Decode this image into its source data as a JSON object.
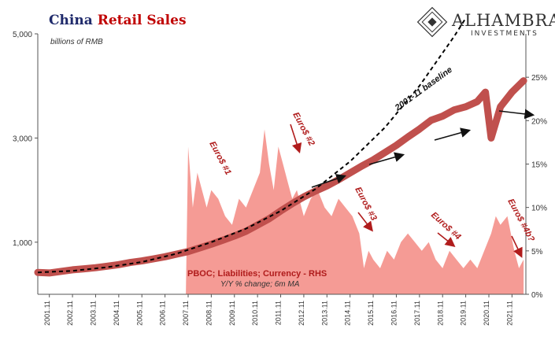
{
  "chart_data": {
    "type": "area",
    "title_part1": "China",
    "title_part2": "Retail Sales",
    "units_label": "billions of RMB",
    "logo": {
      "name": "ALHAMBRA",
      "sub": "INVESTMENTS"
    },
    "x_tick_labels": [
      "2001.11",
      "2002.11",
      "2003.11",
      "2004.11",
      "2005.11",
      "2006.11",
      "2007.11",
      "2008.11",
      "2009.11",
      "2010.11",
      "2011.11",
      "2012.11",
      "2013.11",
      "2014.11",
      "2015.11",
      "2016.11",
      "2017.11",
      "2018.11",
      "2019.11",
      "2020.11",
      "2021.11"
    ],
    "x_range": [
      2000.5,
      2021.6
    ],
    "y_left": {
      "range": [
        0,
        5000
      ],
      "ticks": [
        1000,
        3000,
        5000
      ],
      "tick_labels": [
        "1,000",
        "3,000",
        "5,000"
      ]
    },
    "y_right": {
      "range": [
        0,
        30
      ],
      "ticks": [
        0,
        5,
        10,
        15,
        20,
        25
      ],
      "tick_labels": [
        "0%",
        "5%",
        "10%",
        "15%",
        "20%",
        "25%"
      ]
    },
    "series": [
      {
        "key": "retail",
        "axis": "left",
        "color": "#c0504d",
        "points": [
          [
            2000.5,
            420
          ],
          [
            2001,
            410
          ],
          [
            2001.5,
            440
          ],
          [
            2002,
            470
          ],
          [
            2002.5,
            490
          ],
          [
            2003,
            510
          ],
          [
            2003.5,
            540
          ],
          [
            2004,
            570
          ],
          [
            2004.5,
            610
          ],
          [
            2005,
            640
          ],
          [
            2005.5,
            680
          ],
          [
            2006,
            720
          ],
          [
            2006.5,
            770
          ],
          [
            2007,
            820
          ],
          [
            2007.5,
            890
          ],
          [
            2008,
            960
          ],
          [
            2008.5,
            1040
          ],
          [
            2009,
            1120
          ],
          [
            2009.5,
            1210
          ],
          [
            2010,
            1330
          ],
          [
            2010.5,
            1450
          ],
          [
            2011,
            1600
          ],
          [
            2011.5,
            1740
          ],
          [
            2012,
            1870
          ],
          [
            2012.5,
            1980
          ],
          [
            2013,
            2080
          ],
          [
            2013.5,
            2200
          ],
          [
            2014,
            2330
          ],
          [
            2014.5,
            2460
          ],
          [
            2015,
            2580
          ],
          [
            2015.5,
            2720
          ],
          [
            2016,
            2860
          ],
          [
            2016.5,
            3020
          ],
          [
            2017,
            3170
          ],
          [
            2017.5,
            3340
          ],
          [
            2018,
            3420
          ],
          [
            2018.5,
            3540
          ],
          [
            2019,
            3600
          ],
          [
            2019.5,
            3700
          ],
          [
            2019.85,
            3880
          ],
          [
            2020.1,
            3000
          ],
          [
            2020.5,
            3600
          ],
          [
            2021,
            3880
          ],
          [
            2021.5,
            4100
          ]
        ]
      },
      {
        "key": "baseline",
        "name": "2001-11 baseline",
        "axis": "left",
        "color": "#000000",
        "points": [
          [
            2000.5,
            420
          ],
          [
            2002,
            450
          ],
          [
            2003.5,
            520
          ],
          [
            2005,
            620
          ],
          [
            2006.5,
            780
          ],
          [
            2008,
            1000
          ],
          [
            2009.5,
            1260
          ],
          [
            2011,
            1600
          ],
          [
            2012.5,
            2020
          ],
          [
            2014,
            2550
          ],
          [
            2015.5,
            3200
          ],
          [
            2017,
            4000
          ],
          [
            2018.5,
            4950
          ],
          [
            2019,
            5300
          ]
        ]
      },
      {
        "key": "pboc",
        "name": "PBOC; Liabilities; Currency - RHS",
        "note": "Y/Y % change; 6m MA",
        "axis": "right",
        "color": "#f4908a",
        "points": [
          [
            2006.9,
            0
          ],
          [
            2007,
            17
          ],
          [
            2007.2,
            10
          ],
          [
            2007.4,
            14
          ],
          [
            2007.6,
            12
          ],
          [
            2007.8,
            10
          ],
          [
            2008,
            12
          ],
          [
            2008.3,
            11
          ],
          [
            2008.6,
            9
          ],
          [
            2008.9,
            8
          ],
          [
            2009.2,
            11
          ],
          [
            2009.5,
            10
          ],
          [
            2009.8,
            12
          ],
          [
            2010.1,
            14
          ],
          [
            2010.3,
            19
          ],
          [
            2010.5,
            15
          ],
          [
            2010.7,
            12
          ],
          [
            2010.9,
            17
          ],
          [
            2011.1,
            15
          ],
          [
            2011.3,
            13
          ],
          [
            2011.5,
            11
          ],
          [
            2011.7,
            12
          ],
          [
            2012,
            9
          ],
          [
            2012.3,
            11
          ],
          [
            2012.6,
            12
          ],
          [
            2012.9,
            10
          ],
          [
            2013.2,
            9
          ],
          [
            2013.5,
            11
          ],
          [
            2013.8,
            10
          ],
          [
            2014.1,
            9
          ],
          [
            2014.4,
            7
          ],
          [
            2014.6,
            3
          ],
          [
            2014.8,
            5
          ],
          [
            2015,
            4
          ],
          [
            2015.3,
            3
          ],
          [
            2015.6,
            5
          ],
          [
            2015.9,
            4
          ],
          [
            2016.2,
            6
          ],
          [
            2016.5,
            7
          ],
          [
            2016.8,
            6
          ],
          [
            2017.1,
            5
          ],
          [
            2017.4,
            6
          ],
          [
            2017.7,
            4
          ],
          [
            2018,
            3
          ],
          [
            2018.3,
            5
          ],
          [
            2018.6,
            4
          ],
          [
            2018.9,
            3
          ],
          [
            2019.2,
            4
          ],
          [
            2019.5,
            3
          ],
          [
            2019.8,
            5
          ],
          [
            2020.1,
            7
          ],
          [
            2020.3,
            9
          ],
          [
            2020.5,
            8
          ],
          [
            2020.8,
            9
          ],
          [
            2021.1,
            5
          ],
          [
            2021.3,
            3
          ],
          [
            2021.5,
            4
          ]
        ]
      }
    ],
    "annotations": [
      {
        "key": "euro1",
        "text": "Euro$ #1"
      },
      {
        "key": "euro2",
        "text": "Euro$ #2"
      },
      {
        "key": "euro3",
        "text": "Euro$ #3"
      },
      {
        "key": "euro4",
        "text": "Euro$ #4"
      },
      {
        "key": "euro4b",
        "text": "Euro$ #4b?"
      }
    ]
  }
}
